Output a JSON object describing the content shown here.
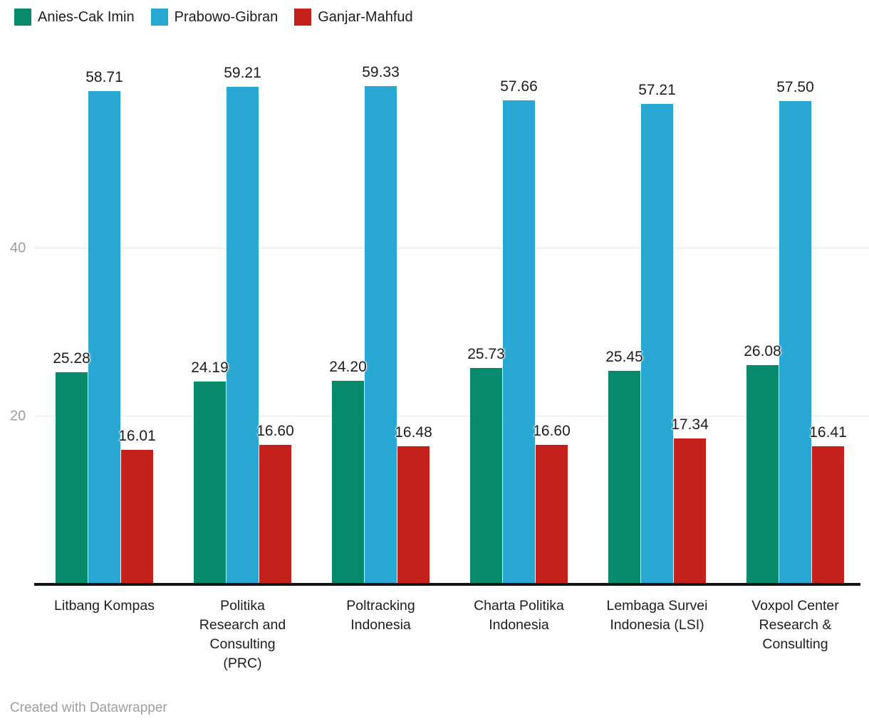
{
  "chart_data": {
    "type": "bar",
    "title": "",
    "xlabel": "",
    "ylabel": "",
    "ylim": [
      0,
      64
    ],
    "yticks": [
      20,
      40
    ],
    "grid": true,
    "legend_position": "top-left",
    "value_label_format": "2-decimals",
    "categories": [
      "Litbang Kompas",
      "Politika\nResearch and\nConsulting\n(PRC)",
      "Poltracking\nIndonesia",
      "Charta Politika\nIndonesia",
      "Lembaga Survei\nIndonesia (LSI)",
      "Voxpol Center\nResearch &\nConsulting"
    ],
    "series": [
      {
        "name": "Anies-Cak Imin",
        "color": "#078a6b",
        "values": [
          25.28,
          24.19,
          24.2,
          25.73,
          25.45,
          26.08
        ]
      },
      {
        "name": "Prabowo-Gibran",
        "color": "#29a7d3",
        "values": [
          58.71,
          59.21,
          59.33,
          57.66,
          57.21,
          57.5
        ]
      },
      {
        "name": "Ganjar-Mahfud",
        "color": "#c4201c",
        "values": [
          16.01,
          16.6,
          16.48,
          16.6,
          17.34,
          16.41
        ]
      }
    ]
  },
  "legend": {
    "items": [
      {
        "label": "Anies-Cak Imin"
      },
      {
        "label": "Prabowo-Gibran"
      },
      {
        "label": "Ganjar-Mahfud"
      }
    ]
  },
  "axis": {
    "tick_labels": [
      "20",
      "40"
    ],
    "baseline_color": "#141414",
    "gridline_color": "#e8e8e8",
    "tick_color": "#9d9d9d"
  },
  "footer": {
    "credit": "Created with Datawrapper"
  }
}
